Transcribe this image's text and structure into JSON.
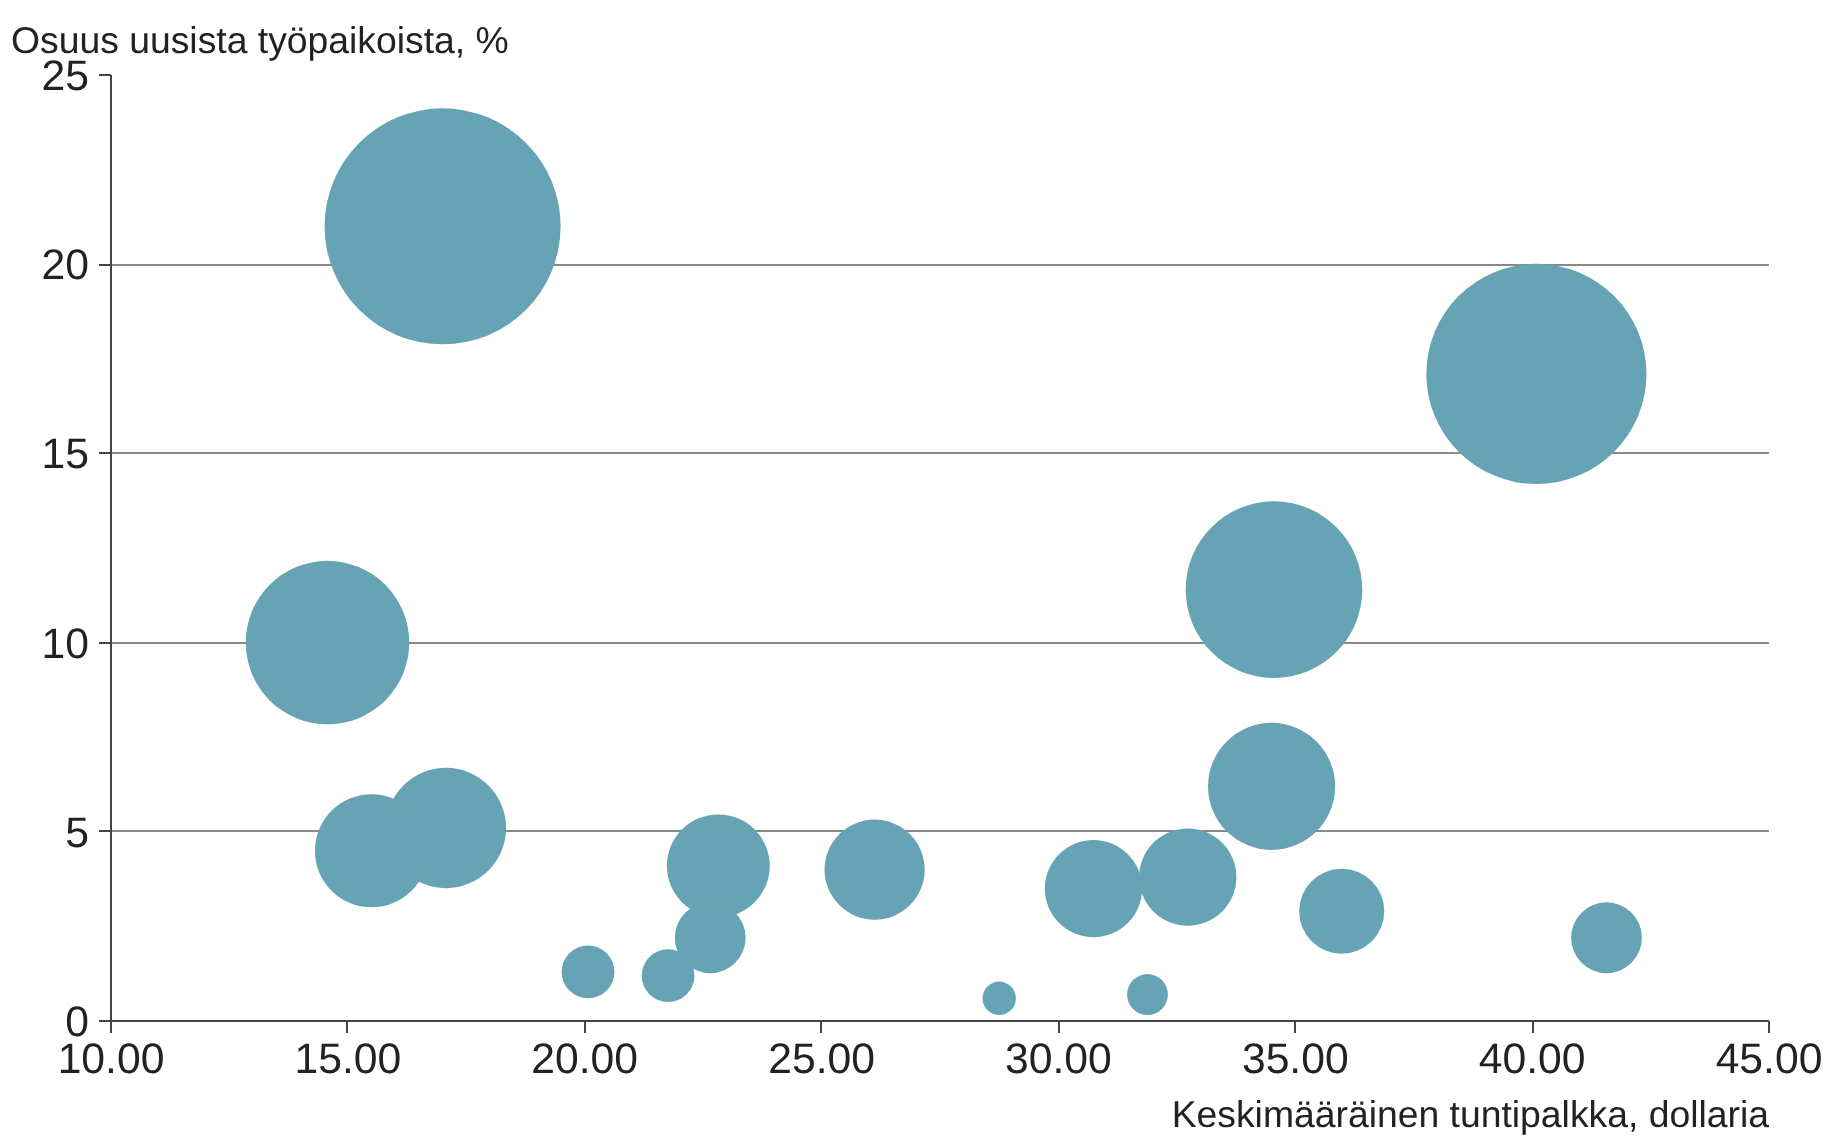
{
  "chart_data": {
    "type": "bubble",
    "xlabel": "Keskimääräinen tuntipalkka, dollaria",
    "ylabel": "Osuus uusista työpaikoista, %",
    "x": [
      17.0,
      40.09,
      34.55,
      14.57,
      34.5,
      17.07,
      15.5,
      22.82,
      26.12,
      30.74,
      32.73,
      35.98,
      41.57,
      22.65,
      20.07,
      21.76,
      28.75,
      31.88
    ],
    "values": [
      21.0,
      17.1,
      11.4,
      10.0,
      6.2,
      5.1,
      4.5,
      4.1,
      4.0,
      3.5,
      3.8,
      2.9,
      2.2,
      2.2,
      1.3,
      1.2,
      0.6,
      0.7
    ],
    "sizes": [
      1,
      0.87,
      0.56,
      0.48,
      0.29,
      0.26,
      0.23,
      0.19,
      0.18,
      0.17,
      0.17,
      0.13,
      0.09,
      0.09,
      0.05,
      0.05,
      0.02,
      0.03
    ],
    "color": "#66a3b4",
    "xlim": [
      10,
      45
    ],
    "xticks": [
      {
        "value": 10,
        "label": "10.00"
      },
      {
        "value": 15,
        "label": "15.00"
      },
      {
        "value": 20,
        "label": "20.00"
      },
      {
        "value": 25,
        "label": "25.00"
      },
      {
        "value": 30,
        "label": "30.00"
      },
      {
        "value": 35,
        "label": "35.00"
      },
      {
        "value": 40,
        "label": "40.00"
      },
      {
        "value": 45,
        "label": "45.00"
      }
    ],
    "ylim": [
      0,
      25
    ],
    "yticks": [
      0,
      5,
      10,
      15,
      20,
      25
    ],
    "grid": "y"
  }
}
